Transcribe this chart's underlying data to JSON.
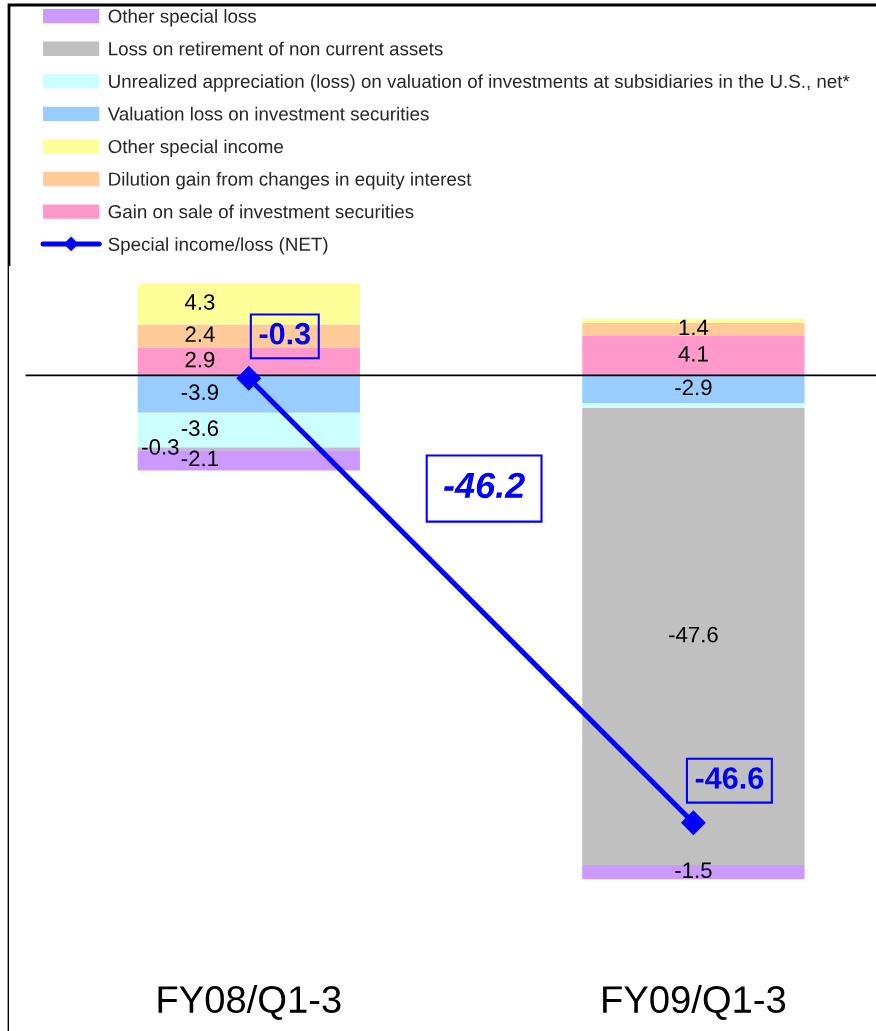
{
  "chart_data": {
    "type": "bar",
    "stacked": true,
    "categories": [
      "FY08/Q1-3",
      "FY09/Q1-3"
    ],
    "series": [
      {
        "name": "Gain on sale of investment securities",
        "color": "#ff99cc",
        "values": [
          2.9,
          4.1
        ],
        "value_labels": [
          "2.9",
          "4.1"
        ]
      },
      {
        "name": "Dilution gain from changes in equity interest",
        "color": "#ffcc99",
        "values": [
          2.4,
          1.4
        ],
        "value_labels": [
          "2.4",
          "1.4"
        ]
      },
      {
        "name": "Other special income",
        "color": "#ffff99",
        "values": [
          4.3,
          0.4
        ],
        "value_labels": [
          "4.3",
          null
        ]
      },
      {
        "name": "Valuation loss on investment securities",
        "color": "#99ccff",
        "values": [
          -3.9,
          -2.9
        ],
        "value_labels": [
          "-3.9",
          "-2.9"
        ]
      },
      {
        "name": "Unrealized appreciation (loss) on valuation of investments at subsidiaries in the U.S., net*",
        "color": "#ccffff",
        "values": [
          -3.6,
          -0.5
        ],
        "value_labels": [
          "-3.6",
          null
        ]
      },
      {
        "name": "Loss on retirement of non current assets",
        "color": "#c0c0c0",
        "values": [
          -0.3,
          -47.6
        ],
        "value_labels": [
          "-0.3",
          "-47.6"
        ]
      },
      {
        "name": "Other special loss",
        "color": "#cc99ff",
        "values": [
          -2.1,
          -1.5
        ],
        "value_labels": [
          "-2.1",
          "-1.5"
        ]
      },
      {
        "name": "Special income/loss (NET)",
        "type": "line",
        "color": "#0000ff",
        "marker": "diamond",
        "values": [
          -0.3,
          -46.6
        ],
        "value_labels": [
          "-0.3",
          "-46.6"
        ]
      }
    ],
    "ylim": [
      -68.3,
      11.4
    ],
    "annotations": [
      "-46.2"
    ],
    "legend": "top left",
    "tick_labels": "x"
  }
}
